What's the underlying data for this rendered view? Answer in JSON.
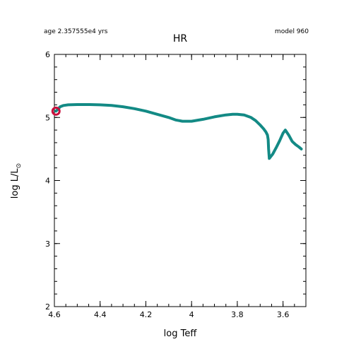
{
  "chart_data": {
    "type": "line",
    "title": "HR",
    "age_label": "age 2.357555e4 yrs",
    "model_label": "model 960",
    "xlabel": "log Teff",
    "ylabel_main": "log L/L",
    "ylabel_sub": "⊙",
    "xlim": [
      4.6,
      3.5
    ],
    "ylim": [
      2,
      6
    ],
    "x_major_ticks": [
      4.6,
      4.4,
      4.2,
      4.0,
      3.8,
      3.6
    ],
    "x_tick_labels": [
      "4.6",
      "4.4",
      "4.2",
      "4",
      "3.8",
      "3.6"
    ],
    "y_major_ticks": [
      2,
      3,
      4,
      5,
      6
    ],
    "y_tick_labels": [
      "2",
      "3",
      "4",
      "5",
      "6"
    ],
    "line_color": "#138a85",
    "marker_color": "#c8103c",
    "series": [
      {
        "name": "track",
        "x": [
          4.593,
          4.585,
          4.575,
          4.56,
          4.54,
          4.5,
          4.45,
          4.4,
          4.35,
          4.3,
          4.25,
          4.2,
          4.15,
          4.1,
          4.07,
          4.04,
          4.0,
          3.95,
          3.9,
          3.85,
          3.82,
          3.8,
          3.77,
          3.74,
          3.72,
          3.7,
          3.685,
          3.675,
          3.668,
          3.665,
          3.663,
          3.66,
          3.645,
          3.63,
          3.615,
          3.6,
          3.59,
          3.575,
          3.56,
          3.545,
          3.53,
          3.52
        ],
        "y": [
          5.1,
          5.13,
          5.17,
          5.19,
          5.2,
          5.205,
          5.205,
          5.2,
          5.19,
          5.17,
          5.14,
          5.1,
          5.05,
          5.0,
          4.96,
          4.94,
          4.94,
          4.97,
          5.01,
          5.04,
          5.05,
          5.05,
          5.04,
          5.0,
          4.95,
          4.88,
          4.82,
          4.77,
          4.72,
          4.65,
          4.5,
          4.35,
          4.42,
          4.52,
          4.63,
          4.75,
          4.8,
          4.72,
          4.62,
          4.57,
          4.53,
          4.5
        ]
      }
    ],
    "current_point": {
      "x": 4.593,
      "y": 5.1
    }
  }
}
